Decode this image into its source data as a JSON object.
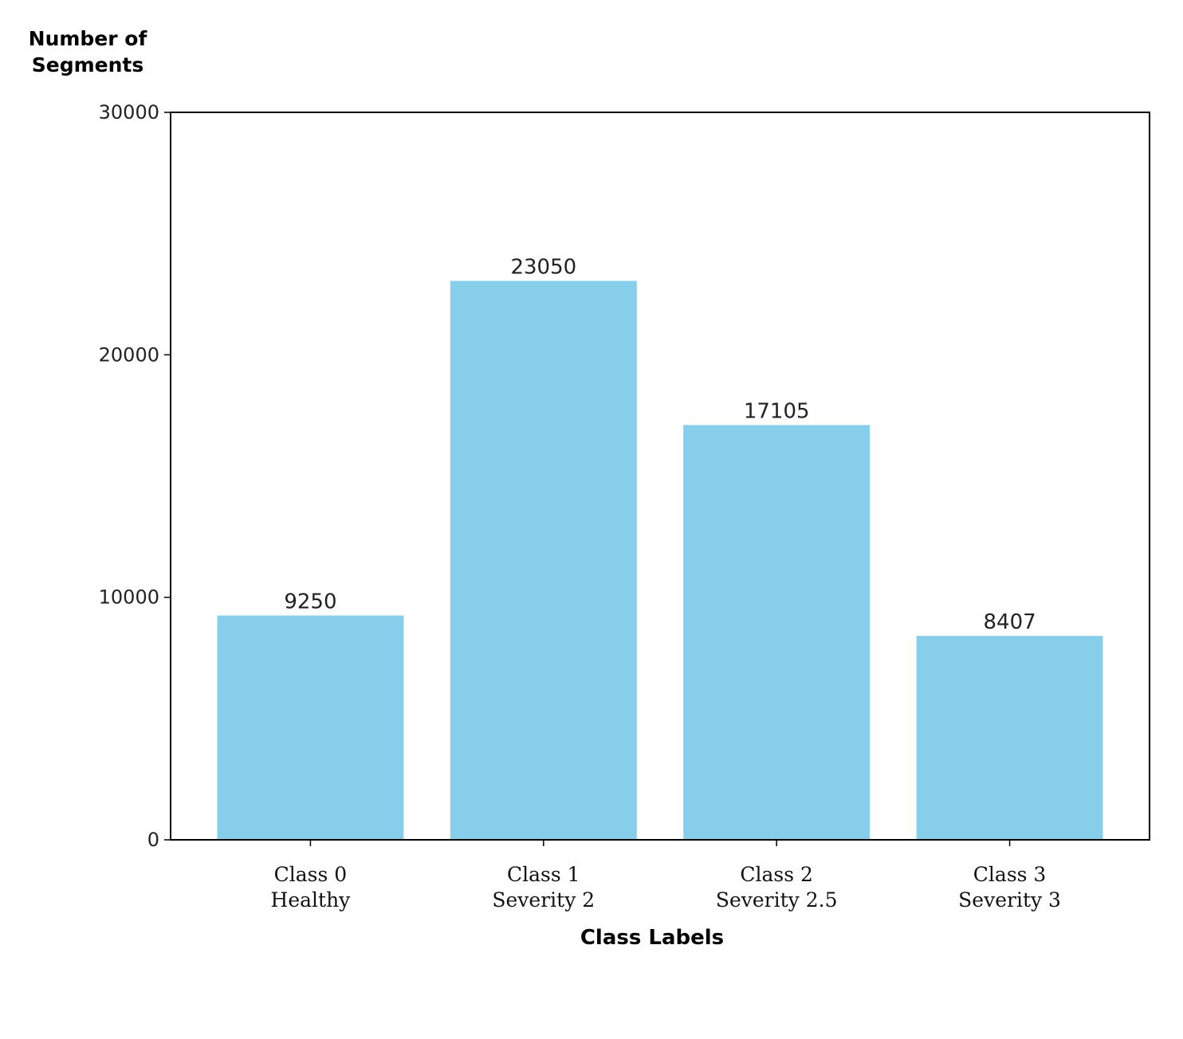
{
  "chart_data": {
    "type": "bar",
    "title": "",
    "xlabel": "Class Labels",
    "ylabel": [
      "Number of",
      "Segments"
    ],
    "categories": [
      [
        "Class 0",
        "Healthy"
      ],
      [
        "Class 1",
        "Severity 2"
      ],
      [
        "Class 2",
        "Severity 2.5"
      ],
      [
        "Class 3",
        "Severity 3"
      ]
    ],
    "values": [
      9250,
      23050,
      17105,
      8407
    ],
    "value_labels": [
      "9250",
      "23050",
      "17105",
      "8407"
    ],
    "ylim": [
      0,
      30000
    ],
    "yticks": [
      0,
      10000,
      20000,
      30000
    ],
    "ytick_labels": [
      "0",
      "10000",
      "20000",
      "30000"
    ],
    "bar_color": "#87CEEB",
    "grid": false,
    "legend": null
  }
}
